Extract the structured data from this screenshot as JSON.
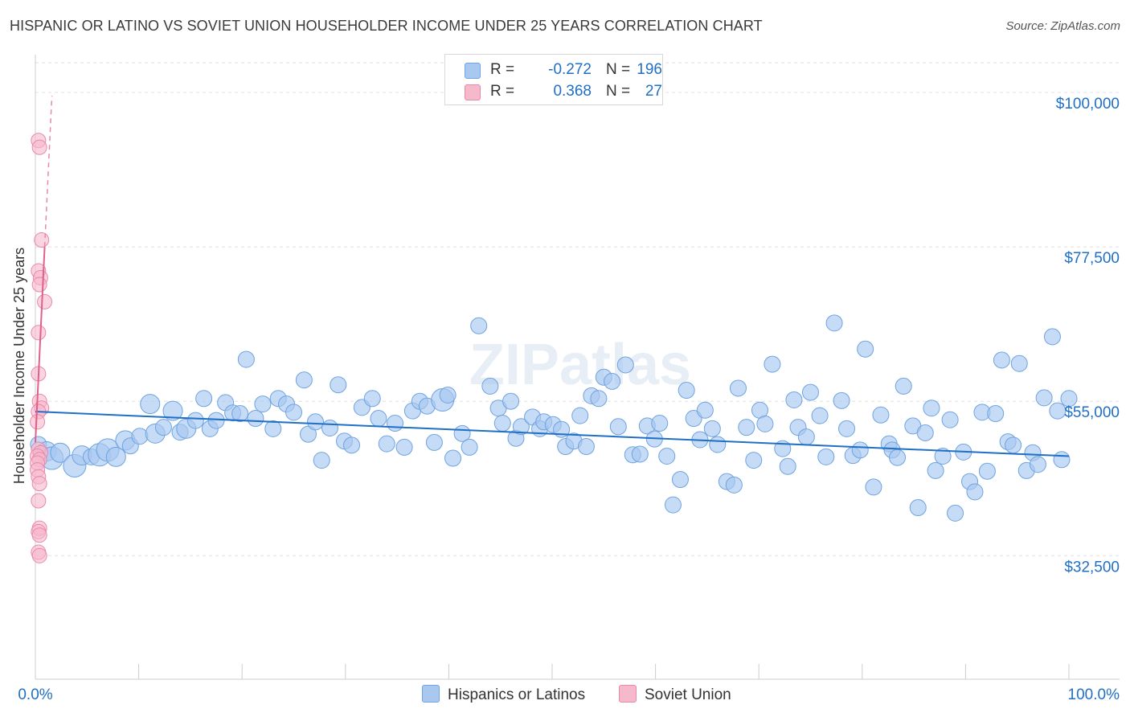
{
  "header": {
    "title": "HISPANIC OR LATINO VS SOVIET UNION HOUSEHOLDER INCOME UNDER 25 YEARS CORRELATION CHART",
    "source": "Source: ZipAtlas.com"
  },
  "watermark": "ZIPatlas",
  "legend": {
    "rows": [
      {
        "r_label": "R =",
        "r_value": "-0.272",
        "n_label": "N =",
        "n_value": "196"
      },
      {
        "r_label": "R =",
        "r_value": "0.368",
        "n_label": "N =",
        "n_value": "27"
      }
    ]
  },
  "bottom_legend": {
    "series1": "Hispanics or Latinos",
    "series2": "Soviet Union"
  },
  "colors": {
    "blue_fill": "#a8c8f0",
    "blue_stroke": "#6fa3e0",
    "blue_line": "#1f6fc7",
    "pink_fill": "#f6b8cb",
    "pink_stroke": "#e889a8",
    "pink_line": "#e0608a",
    "axis_label": "#1f6fc7",
    "grid": "#e0e0e0"
  },
  "chart_data": {
    "type": "scatter",
    "title": "HISPANIC OR LATINO VS SOVIET UNION HOUSEHOLDER INCOME UNDER 25 YEARS CORRELATION CHART",
    "xlabel": "",
    "ylabel": "Householder Income Under 25 years",
    "xlim": [
      0,
      100
    ],
    "ylim": [
      14500,
      105500
    ],
    "x_tick_labels": [
      "0.0%",
      "100.0%"
    ],
    "y_ticks": [
      32500,
      55000,
      77500,
      100000
    ],
    "y_tick_labels": [
      "$32,500",
      "$55,000",
      "$77,500",
      "$100,000"
    ],
    "legend_position": "top-center",
    "series": [
      {
        "name": "Hispanics or Latinos",
        "R": -0.272,
        "N": 196,
        "trend": {
          "x": [
            0,
            100
          ],
          "y": [
            53500,
            47000
          ]
        },
        "points": [
          [
            0.3,
            48.7,
            10
          ],
          [
            1.1,
            47.7,
            12
          ],
          [
            1.6,
            46.7,
            14
          ],
          [
            2.4,
            47.5,
            12
          ],
          [
            3.8,
            45.6,
            14
          ],
          [
            4.5,
            47.1,
            12
          ],
          [
            5.4,
            46.9,
            10
          ],
          [
            6.2,
            47.2,
            14
          ],
          [
            7.0,
            47.9,
            14
          ],
          [
            7.8,
            46.9,
            12
          ],
          [
            8.7,
            49.3,
            12
          ],
          [
            9.2,
            48.5,
            10
          ],
          [
            10.1,
            49.9,
            10
          ],
          [
            11.1,
            54.6,
            12
          ],
          [
            11.6,
            50.3,
            12
          ],
          [
            12.4,
            51.2,
            10
          ],
          [
            13.3,
            53.6,
            12
          ],
          [
            14.0,
            50.5,
            10
          ],
          [
            14.6,
            51.0,
            12
          ],
          [
            15.5,
            52.2,
            10
          ],
          [
            16.3,
            55.4,
            10
          ],
          [
            16.9,
            51.0,
            10
          ],
          [
            17.5,
            52.2,
            10
          ],
          [
            18.4,
            54.8,
            10
          ],
          [
            19.1,
            53.3,
            10
          ],
          [
            19.8,
            53.2,
            10
          ],
          [
            20.4,
            61.1,
            10
          ],
          [
            21.3,
            52.5,
            10
          ],
          [
            22.0,
            54.6,
            10
          ],
          [
            23.0,
            51.0,
            10
          ],
          [
            23.5,
            55.4,
            10
          ],
          [
            24.3,
            54.6,
            10
          ],
          [
            25.0,
            53.4,
            10
          ],
          [
            26.0,
            58.1,
            10
          ],
          [
            26.4,
            50.2,
            10
          ],
          [
            27.1,
            52.0,
            10
          ],
          [
            27.7,
            46.4,
            10
          ],
          [
            28.5,
            51.1,
            10
          ],
          [
            29.3,
            57.4,
            10
          ],
          [
            29.9,
            49.2,
            10
          ],
          [
            30.6,
            48.6,
            10
          ],
          [
            31.6,
            54.1,
            10
          ],
          [
            32.6,
            55.4,
            10
          ],
          [
            33.2,
            52.5,
            10
          ],
          [
            34.0,
            48.8,
            10
          ],
          [
            34.8,
            51.8,
            10
          ],
          [
            35.7,
            48.3,
            10
          ],
          [
            36.5,
            53.6,
            10
          ],
          [
            37.2,
            55.0,
            10
          ],
          [
            37.9,
            54.3,
            10
          ],
          [
            38.6,
            49.0,
            10
          ],
          [
            39.4,
            55.2,
            14
          ],
          [
            39.9,
            55.9,
            10
          ],
          [
            40.4,
            46.7,
            10
          ],
          [
            41.3,
            50.3,
            10
          ],
          [
            42.0,
            48.3,
            10
          ],
          [
            42.9,
            66.0,
            10
          ],
          [
            44.0,
            57.2,
            10
          ],
          [
            44.8,
            54.0,
            10
          ],
          [
            45.2,
            51.8,
            10
          ],
          [
            46.0,
            55.0,
            10
          ],
          [
            46.5,
            49.6,
            10
          ],
          [
            47.0,
            51.3,
            10
          ],
          [
            48.1,
            52.7,
            10
          ],
          [
            48.8,
            51.0,
            10
          ],
          [
            49.2,
            52.0,
            10
          ],
          [
            50.1,
            51.6,
            10
          ],
          [
            50.9,
            50.9,
            10
          ],
          [
            51.3,
            48.4,
            10
          ],
          [
            52.1,
            49.2,
            10
          ],
          [
            52.7,
            52.9,
            10
          ],
          [
            53.3,
            48.4,
            10
          ],
          [
            53.8,
            55.8,
            10
          ],
          [
            54.5,
            55.4,
            10
          ],
          [
            55.0,
            58.5,
            10
          ],
          [
            55.8,
            57.9,
            10
          ],
          [
            56.4,
            51.3,
            10
          ],
          [
            57.1,
            60.3,
            10
          ],
          [
            57.8,
            47.2,
            10
          ],
          [
            58.5,
            47.3,
            10
          ],
          [
            59.2,
            51.4,
            10
          ],
          [
            59.9,
            49.5,
            10
          ],
          [
            60.4,
            51.8,
            10
          ],
          [
            61.1,
            47.0,
            10
          ],
          [
            61.7,
            39.9,
            10
          ],
          [
            62.4,
            43.6,
            10
          ],
          [
            63.0,
            56.6,
            10
          ],
          [
            63.7,
            52.5,
            10
          ],
          [
            64.3,
            49.4,
            10
          ],
          [
            64.8,
            53.7,
            10
          ],
          [
            65.5,
            51.0,
            10
          ],
          [
            66.0,
            48.7,
            10
          ],
          [
            66.9,
            43.3,
            10
          ],
          [
            67.6,
            42.8,
            10
          ],
          [
            68.0,
            56.9,
            10
          ],
          [
            68.8,
            51.2,
            10
          ],
          [
            69.5,
            46.4,
            10
          ],
          [
            70.1,
            53.7,
            10
          ],
          [
            70.6,
            51.7,
            10
          ],
          [
            71.3,
            60.4,
            10
          ],
          [
            72.3,
            48.1,
            10
          ],
          [
            72.8,
            45.5,
            10
          ],
          [
            73.4,
            55.2,
            10
          ],
          [
            73.8,
            51.2,
            10
          ],
          [
            74.6,
            49.8,
            10
          ],
          [
            75.0,
            56.3,
            10
          ],
          [
            75.9,
            52.9,
            10
          ],
          [
            76.5,
            46.9,
            10
          ],
          [
            77.3,
            66.4,
            10
          ],
          [
            78.0,
            55.1,
            10
          ],
          [
            78.5,
            51.0,
            10
          ],
          [
            79.1,
            47.1,
            10
          ],
          [
            79.8,
            47.9,
            10
          ],
          [
            80.3,
            62.6,
            10
          ],
          [
            81.1,
            42.5,
            10
          ],
          [
            81.8,
            53.0,
            10
          ],
          [
            82.6,
            48.8,
            10
          ],
          [
            82.9,
            47.9,
            10
          ],
          [
            83.4,
            46.8,
            10
          ],
          [
            84.0,
            57.2,
            10
          ],
          [
            84.9,
            51.4,
            10
          ],
          [
            85.4,
            39.5,
            10
          ],
          [
            86.1,
            50.4,
            10
          ],
          [
            86.7,
            54.0,
            10
          ],
          [
            87.1,
            44.9,
            10
          ],
          [
            87.8,
            47.0,
            10
          ],
          [
            88.5,
            52.3,
            10
          ],
          [
            89.0,
            38.7,
            10
          ],
          [
            89.8,
            47.6,
            10
          ],
          [
            90.4,
            43.3,
            10
          ],
          [
            90.9,
            41.8,
            10
          ],
          [
            91.6,
            53.4,
            10
          ],
          [
            92.1,
            44.8,
            10
          ],
          [
            92.9,
            53.2,
            10
          ],
          [
            93.5,
            61.0,
            10
          ],
          [
            94.1,
            49.1,
            10
          ],
          [
            94.6,
            48.6,
            10
          ],
          [
            95.2,
            60.5,
            10
          ],
          [
            95.9,
            44.9,
            10
          ],
          [
            96.5,
            47.5,
            10
          ],
          [
            97.0,
            45.8,
            10
          ],
          [
            97.6,
            55.5,
            10
          ],
          [
            98.4,
            64.4,
            10
          ],
          [
            98.9,
            53.6,
            10
          ],
          [
            99.3,
            46.5,
            10
          ],
          [
            100.0,
            55.4,
            10
          ]
        ]
      },
      {
        "name": "Soviet Union",
        "R": 0.368,
        "N": 27,
        "trend": {
          "x": [
            0.0,
            0.9
          ],
          "y": [
            49000,
            77500
          ]
        },
        "trend_extended": {
          "x": [
            0.9,
            1.6
          ],
          "y": [
            77500,
            99500
          ]
        },
        "points": []
      }
    ]
  }
}
